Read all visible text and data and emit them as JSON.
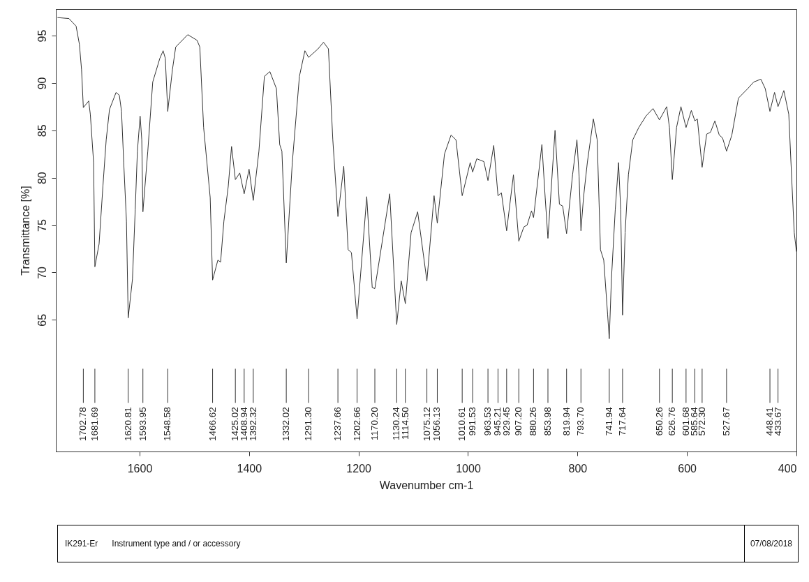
{
  "chart_data": {
    "type": "line",
    "xlabel": "Wavenumber cm-1",
    "ylabel": "Transmittance [%]",
    "xlim": [
      1753,
      400
    ],
    "ylim": [
      51.1,
      97.8
    ],
    "xticks": [
      1600,
      1400,
      1200,
      1000,
      800,
      600,
      400
    ],
    "yticks": [
      65,
      70,
      75,
      80,
      85,
      90,
      95
    ],
    "grid": false,
    "marker": "none",
    "line_style": "solid",
    "series": [
      {
        "color": "#333333",
        "x": [
          1750,
          1729,
          1716,
          1710,
          1706,
          1702.78,
          1693,
          1690,
          1684,
          1681.69,
          1674,
          1667,
          1661,
          1655,
          1643,
          1637,
          1633,
          1629,
          1624,
          1620.81,
          1613,
          1608,
          1604,
          1599,
          1596,
          1593.95,
          1585,
          1576,
          1563,
          1557,
          1553,
          1548.58,
          1540,
          1534,
          1512,
          1495,
          1490,
          1483,
          1471,
          1466.62,
          1457,
          1452,
          1446,
          1438,
          1432,
          1425.02,
          1417,
          1408.94,
          1400,
          1392.32,
          1382,
          1372,
          1362,
          1350,
          1344,
          1340,
          1332.02,
          1321,
          1308,
          1298,
          1291.3,
          1274,
          1264,
          1255,
          1247,
          1237.66,
          1227,
          1219,
          1213,
          1202.66,
          1185,
          1175,
          1170.2,
          1143,
          1130.24,
          1122,
          1114.5,
          1104,
          1092,
          1075.12,
          1062,
          1056.13,
          1043,
          1031,
          1022,
          1010.61,
          996,
          991.53,
          984,
          971,
          963.53,
          953,
          945.21,
          939,
          929.45,
          917,
          907.2,
          898,
          892,
          884,
          880.26,
          865,
          859,
          853.98,
          841,
          833,
          827,
          819.94,
          809,
          801,
          797,
          793.7,
          789,
          782,
          771,
          764,
          758,
          752,
          745,
          741.94,
          738,
          731,
          725,
          721,
          717.64,
          713,
          707,
          699,
          688,
          675,
          662,
          650.26,
          637,
          632,
          626.76,
          619,
          611,
          601.68,
          592,
          585.64,
          581,
          572.3,
          564,
          557,
          549,
          541,
          535,
          527.67,
          518,
          506,
          489,
          478,
          465,
          457,
          448.41,
          440,
          433.67,
          423,
          414,
          408,
          404,
          400
        ],
        "values": [
          96.9,
          96.8,
          96.0,
          94.1,
          91.4,
          87.4,
          88.1,
          86.7,
          81.6,
          70.6,
          73.0,
          79.1,
          84.0,
          87.2,
          89.0,
          88.7,
          87.0,
          81.6,
          75.4,
          65.2,
          69.3,
          76.6,
          82.8,
          86.5,
          84.0,
          76.4,
          82.8,
          90.1,
          92.6,
          93.4,
          92.6,
          87.0,
          91.4,
          93.8,
          95.1,
          94.5,
          93.8,
          85.3,
          77.9,
          69.2,
          71.3,
          71.1,
          75.4,
          79.1,
          83.3,
          79.8,
          80.5,
          78.3,
          80.9,
          77.6,
          82.8,
          90.7,
          91.2,
          89.4,
          83.5,
          82.8,
          71.0,
          81.6,
          90.7,
          93.4,
          92.7,
          93.6,
          94.3,
          93.6,
          84.0,
          75.9,
          81.2,
          72.4,
          72.1,
          65.1,
          78.0,
          68.4,
          68.3,
          78.3,
          64.5,
          69.1,
          66.7,
          74.2,
          76.4,
          69.1,
          78.1,
          75.2,
          82.5,
          84.5,
          84.0,
          78.1,
          81.6,
          80.6,
          82.0,
          81.7,
          79.7,
          83.4,
          78.1,
          78.4,
          74.4,
          80.3,
          73.3,
          74.8,
          75.0,
          76.5,
          75.8,
          83.5,
          77.9,
          73.6,
          85.0,
          77.2,
          77.0,
          74.1,
          80.3,
          84.0,
          80.1,
          74.4,
          77.9,
          81.6,
          86.2,
          84.0,
          72.4,
          71.3,
          65.6,
          63.0,
          69.3,
          76.6,
          81.6,
          76.6,
          65.5,
          74.2,
          80.3,
          84.0,
          85.3,
          86.5,
          87.3,
          86.1,
          87.5,
          85.3,
          79.8,
          85.3,
          87.5,
          85.3,
          87.1,
          86.0,
          86.2,
          81.1,
          84.6,
          84.8,
          86.0,
          84.5,
          84.2,
          82.8,
          84.5,
          88.4,
          89.4,
          90.1,
          90.4,
          89.4,
          87.0,
          89.0,
          87.5,
          89.2,
          86.7,
          79.1,
          74.2,
          72.2
        ]
      }
    ],
    "ref_lines": [
      {
        "axis": "x",
        "value": 1702.78,
        "label": "1702.78"
      },
      {
        "axis": "x",
        "value": 1681.69,
        "label": "1681.69"
      },
      {
        "axis": "x",
        "value": 1620.81,
        "label": "1620.81"
      },
      {
        "axis": "x",
        "value": 1593.95,
        "label": "1593.95"
      },
      {
        "axis": "x",
        "value": 1548.58,
        "label": "1548.58"
      },
      {
        "axis": "x",
        "value": 1466.62,
        "label": "1466.62"
      },
      {
        "axis": "x",
        "value": 1425.02,
        "label": "1425.02"
      },
      {
        "axis": "x",
        "value": 1408.94,
        "label": "1408.94"
      },
      {
        "axis": "x",
        "value": 1392.32,
        "label": "1392.32"
      },
      {
        "axis": "x",
        "value": 1332.02,
        "label": "1332.02"
      },
      {
        "axis": "x",
        "value": 1291.3,
        "label": "1291.30"
      },
      {
        "axis": "x",
        "value": 1237.66,
        "label": "1237.66"
      },
      {
        "axis": "x",
        "value": 1202.66,
        "label": "1202.66"
      },
      {
        "axis": "x",
        "value": 1170.2,
        "label": "1170.20"
      },
      {
        "axis": "x",
        "value": 1130.24,
        "label": "1130.24"
      },
      {
        "axis": "x",
        "value": 1114.5,
        "label": "1114.50"
      },
      {
        "axis": "x",
        "value": 1075.12,
        "label": "1075.12"
      },
      {
        "axis": "x",
        "value": 1056.13,
        "label": "1056.13"
      },
      {
        "axis": "x",
        "value": 1010.61,
        "label": "1010.61"
      },
      {
        "axis": "x",
        "value": 991.53,
        "label": "991.53"
      },
      {
        "axis": "x",
        "value": 963.53,
        "label": "963.53"
      },
      {
        "axis": "x",
        "value": 945.21,
        "label": "945.21"
      },
      {
        "axis": "x",
        "value": 929.45,
        "label": "929.45"
      },
      {
        "axis": "x",
        "value": 907.2,
        "label": "907.20"
      },
      {
        "axis": "x",
        "value": 880.26,
        "label": "880.26"
      },
      {
        "axis": "x",
        "value": 853.98,
        "label": "853.98"
      },
      {
        "axis": "x",
        "value": 819.94,
        "label": "819.94"
      },
      {
        "axis": "x",
        "value": 793.7,
        "label": "793.70"
      },
      {
        "axis": "x",
        "value": 741.94,
        "label": "741.94"
      },
      {
        "axis": "x",
        "value": 717.64,
        "label": "717.64"
      },
      {
        "axis": "x",
        "value": 650.26,
        "label": "650.26"
      },
      {
        "axis": "x",
        "value": 626.76,
        "label": "626.76"
      },
      {
        "axis": "x",
        "value": 601.68,
        "label": "601.68"
      },
      {
        "axis": "x",
        "value": 585.64,
        "label": "585.64"
      },
      {
        "axis": "x",
        "value": 572.3,
        "label": "572.30"
      },
      {
        "axis": "x",
        "value": 527.67,
        "label": "527.67"
      },
      {
        "axis": "x",
        "value": 448.41,
        "label": "448.41"
      },
      {
        "axis": "x",
        "value": 433.67,
        "label": "433.67"
      }
    ],
    "annotations": [
      "IK291-Er",
      "Instrument type and / or accessory",
      "07/08/2018"
    ]
  }
}
